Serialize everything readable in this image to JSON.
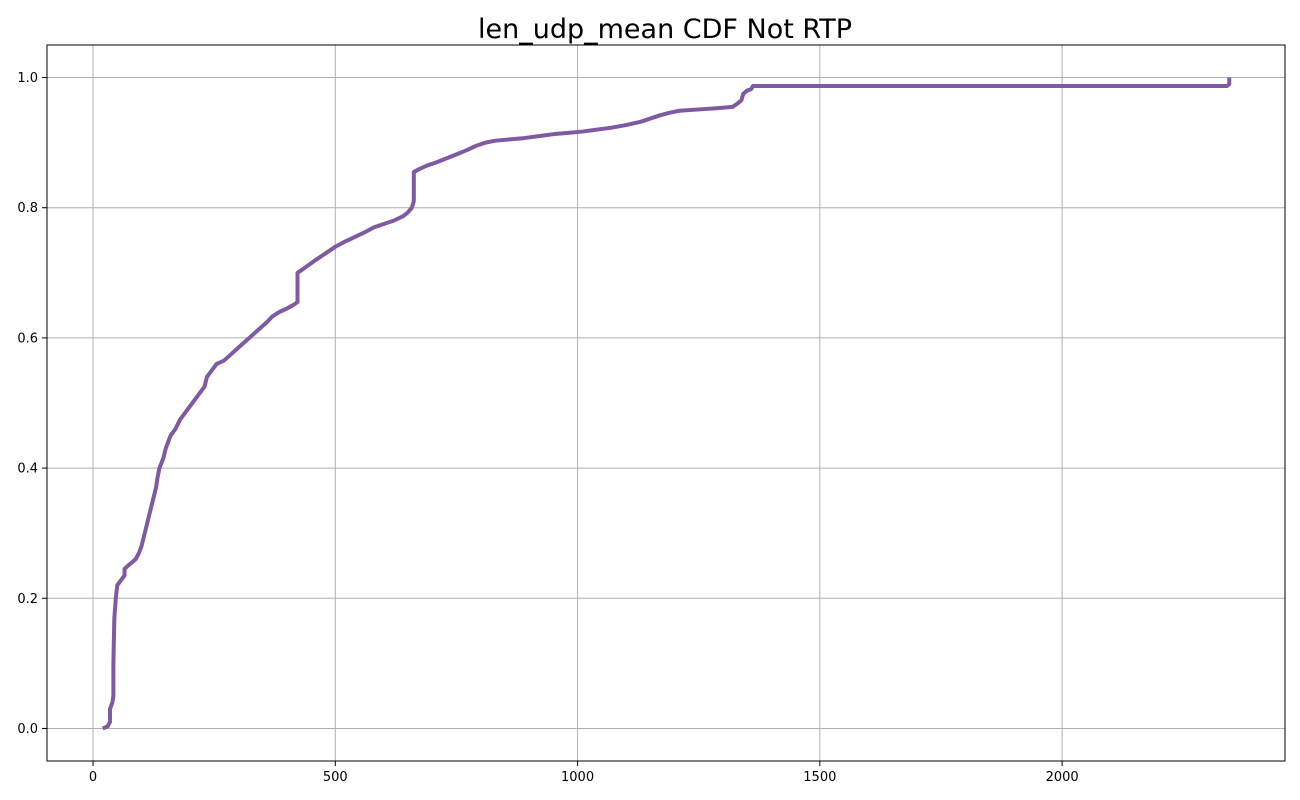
{
  "chart_data": {
    "type": "line",
    "title": "len_udp_mean CDF Not RTP",
    "xlabel": "",
    "ylabel": "",
    "xlim": [
      -95,
      2460
    ],
    "ylim": [
      -0.05,
      1.05
    ],
    "grid": true,
    "x_ticks": [
      0,
      500,
      1000,
      1500,
      2000
    ],
    "x_tick_labels": [
      "0",
      "500",
      "1000",
      "1500",
      "2000"
    ],
    "y_ticks": [
      0.0,
      0.2,
      0.4,
      0.6,
      0.8,
      1.0
    ],
    "y_tick_labels": [
      "0.0",
      "0.2",
      "0.4",
      "0.6",
      "0.8",
      "1.0"
    ],
    "series": [
      {
        "color": "#7f5aa2",
        "points": [
          [
            20,
            0.0
          ],
          [
            30,
            0.003
          ],
          [
            35,
            0.01
          ],
          [
            35,
            0.03
          ],
          [
            40,
            0.04
          ],
          [
            42,
            0.05
          ],
          [
            42,
            0.1
          ],
          [
            44,
            0.17
          ],
          [
            47,
            0.2
          ],
          [
            50,
            0.22
          ],
          [
            55,
            0.225
          ],
          [
            60,
            0.23
          ],
          [
            65,
            0.235
          ],
          [
            65,
            0.245
          ],
          [
            72,
            0.25
          ],
          [
            80,
            0.255
          ],
          [
            88,
            0.26
          ],
          [
            95,
            0.27
          ],
          [
            100,
            0.28
          ],
          [
            105,
            0.295
          ],
          [
            110,
            0.31
          ],
          [
            115,
            0.325
          ],
          [
            120,
            0.34
          ],
          [
            125,
            0.355
          ],
          [
            130,
            0.37
          ],
          [
            133,
            0.385
          ],
          [
            137,
            0.4
          ],
          [
            145,
            0.415
          ],
          [
            150,
            0.43
          ],
          [
            155,
            0.44
          ],
          [
            160,
            0.45
          ],
          [
            170,
            0.46
          ],
          [
            180,
            0.475
          ],
          [
            190,
            0.485
          ],
          [
            200,
            0.495
          ],
          [
            210,
            0.505
          ],
          [
            220,
            0.515
          ],
          [
            230,
            0.525
          ],
          [
            235,
            0.54
          ],
          [
            245,
            0.55
          ],
          [
            255,
            0.56
          ],
          [
            270,
            0.565
          ],
          [
            285,
            0.575
          ],
          [
            300,
            0.585
          ],
          [
            315,
            0.595
          ],
          [
            330,
            0.605
          ],
          [
            345,
            0.615
          ],
          [
            360,
            0.625
          ],
          [
            370,
            0.633
          ],
          [
            385,
            0.64
          ],
          [
            400,
            0.645
          ],
          [
            412,
            0.65
          ],
          [
            422,
            0.655
          ],
          [
            422,
            0.7
          ],
          [
            432,
            0.705
          ],
          [
            445,
            0.712
          ],
          [
            460,
            0.72
          ],
          [
            480,
            0.73
          ],
          [
            500,
            0.74
          ],
          [
            520,
            0.748
          ],
          [
            540,
            0.755
          ],
          [
            560,
            0.762
          ],
          [
            580,
            0.77
          ],
          [
            600,
            0.775
          ],
          [
            620,
            0.78
          ],
          [
            640,
            0.787
          ],
          [
            650,
            0.793
          ],
          [
            658,
            0.8
          ],
          [
            662,
            0.81
          ],
          [
            662,
            0.855
          ],
          [
            675,
            0.86
          ],
          [
            690,
            0.865
          ],
          [
            710,
            0.87
          ],
          [
            730,
            0.876
          ],
          [
            750,
            0.882
          ],
          [
            770,
            0.888
          ],
          [
            790,
            0.895
          ],
          [
            810,
            0.9
          ],
          [
            830,
            0.903
          ],
          [
            860,
            0.905
          ],
          [
            890,
            0.907
          ],
          [
            920,
            0.91
          ],
          [
            950,
            0.913
          ],
          [
            980,
            0.915
          ],
          [
            1010,
            0.917
          ],
          [
            1040,
            0.92
          ],
          [
            1070,
            0.923
          ],
          [
            1100,
            0.927
          ],
          [
            1130,
            0.932
          ],
          [
            1150,
            0.937
          ],
          [
            1170,
            0.942
          ],
          [
            1190,
            0.946
          ],
          [
            1210,
            0.949
          ],
          [
            1250,
            0.951
          ],
          [
            1290,
            0.953
          ],
          [
            1320,
            0.955
          ],
          [
            1330,
            0.96
          ],
          [
            1338,
            0.965
          ],
          [
            1342,
            0.975
          ],
          [
            1350,
            0.98
          ],
          [
            1358,
            0.982
          ],
          [
            1362,
            0.987
          ],
          [
            2340,
            0.987
          ],
          [
            2345,
            0.99
          ],
          [
            2345,
            1.0
          ]
        ]
      }
    ]
  }
}
